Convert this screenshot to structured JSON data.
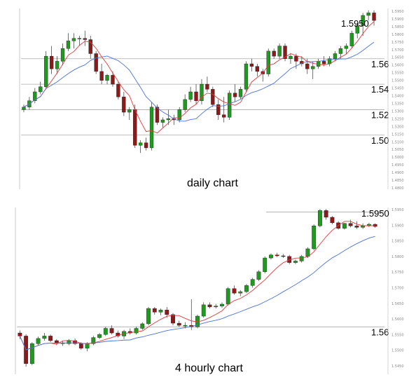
{
  "colors": {
    "bull": "#1f9a1f",
    "bear": "#8b1a1a",
    "ma_fast": "#e23b3b",
    "ma_slow": "#4a74d6",
    "ref_line": "#aaaaaa",
    "frame": "#bbbbbb"
  },
  "chart_data": [
    {
      "type": "candlestick",
      "title": "daily chart",
      "price_label": "1.5950",
      "ylim": [
        1.4575,
        1.5995
      ],
      "levels": [
        {
          "value": 1.56,
          "label": "1.56"
        },
        {
          "value": 1.54,
          "label": "1.54"
        },
        {
          "value": 1.52,
          "label": "1.52"
        },
        {
          "value": 1.5,
          "label": "1.50"
        }
      ],
      "ticks": [
        "1.5950",
        "1.5900",
        "1.5850",
        "1.5800",
        "1.5750",
        "1.5700",
        "1.5650",
        "1.5600",
        "1.5550",
        "1.5500",
        "1.5450",
        "1.5400",
        "1.5350",
        "1.5300",
        "1.5250",
        "1.5200",
        "1.5150",
        "1.5100",
        "1.5050",
        "1.5000",
        "1.4950",
        "1.4900",
        "1.4850",
        "1.4800"
      ],
      "ohlc": [
        [
          1.52,
          1.524,
          1.518,
          1.522
        ],
        [
          1.522,
          1.53,
          1.52,
          1.527
        ],
        [
          1.527,
          1.537,
          1.525,
          1.534
        ],
        [
          1.534,
          1.542,
          1.532,
          1.538
        ],
        [
          1.538,
          1.566,
          1.536,
          1.562
        ],
        [
          1.562,
          1.57,
          1.548,
          1.552
        ],
        [
          1.552,
          1.562,
          1.548,
          1.558
        ],
        [
          1.558,
          1.572,
          1.555,
          1.568
        ],
        [
          1.568,
          1.58,
          1.566,
          1.574
        ],
        [
          1.574,
          1.58,
          1.568,
          1.576
        ],
        [
          1.576,
          1.578,
          1.57,
          1.576
        ],
        [
          1.576,
          1.582,
          1.57,
          1.575
        ],
        [
          1.575,
          1.578,
          1.56,
          1.564
        ],
        [
          1.564,
          1.566,
          1.548,
          1.55
        ],
        [
          1.55,
          1.556,
          1.54,
          1.543
        ],
        [
          1.543,
          1.548,
          1.54,
          1.547
        ],
        [
          1.547,
          1.55,
          1.538,
          1.54
        ],
        [
          1.54,
          1.542,
          1.528,
          1.53
        ],
        [
          1.53,
          1.534,
          1.515,
          1.518
        ],
        [
          1.518,
          1.522,
          1.512,
          1.52
        ],
        [
          1.52,
          1.524,
          1.49,
          1.492
        ],
        [
          1.492,
          1.496,
          1.486,
          1.494
        ],
        [
          1.494,
          1.498,
          1.488,
          1.49
        ],
        [
          1.49,
          1.526,
          1.488,
          1.522
        ],
        [
          1.522,
          1.524,
          1.508,
          1.51
        ],
        [
          1.51,
          1.514,
          1.506,
          1.512
        ],
        [
          1.512,
          1.52,
          1.508,
          1.513
        ],
        [
          1.513,
          1.516,
          1.508,
          1.512
        ],
        [
          1.512,
          1.522,
          1.51,
          1.52
        ],
        [
          1.52,
          1.532,
          1.518,
          1.528
        ],
        [
          1.528,
          1.538,
          1.526,
          1.534
        ],
        [
          1.534,
          1.54,
          1.524,
          1.527
        ],
        [
          1.527,
          1.544,
          1.524,
          1.54
        ],
        [
          1.54,
          1.546,
          1.534,
          1.536
        ],
        [
          1.536,
          1.538,
          1.522,
          1.524
        ],
        [
          1.524,
          1.528,
          1.512,
          1.516
        ],
        [
          1.516,
          1.53,
          1.51,
          1.514
        ],
        [
          1.514,
          1.535,
          1.512,
          1.533
        ],
        [
          1.533,
          1.54,
          1.526,
          1.53
        ],
        [
          1.53,
          1.538,
          1.528,
          1.536
        ],
        [
          1.536,
          1.558,
          1.534,
          1.556
        ],
        [
          1.556,
          1.56,
          1.55,
          1.554
        ],
        [
          1.554,
          1.556,
          1.546,
          1.55
        ],
        [
          1.55,
          1.552,
          1.542,
          1.548
        ],
        [
          1.548,
          1.568,
          1.546,
          1.566
        ],
        [
          1.566,
          1.568,
          1.56,
          1.562
        ],
        [
          1.562,
          1.572,
          1.56,
          1.57
        ],
        [
          1.57,
          1.572,
          1.558,
          1.56
        ],
        [
          1.56,
          1.564,
          1.556,
          1.562
        ],
        [
          1.562,
          1.564,
          1.552,
          1.558
        ],
        [
          1.558,
          1.562,
          1.554,
          1.556
        ],
        [
          1.556,
          1.56,
          1.548,
          1.552
        ],
        [
          1.552,
          1.558,
          1.544,
          1.554
        ],
        [
          1.554,
          1.56,
          1.552,
          1.558
        ],
        [
          1.558,
          1.562,
          1.554,
          1.556
        ],
        [
          1.556,
          1.562,
          1.554,
          1.56
        ],
        [
          1.56,
          1.566,
          1.558,
          1.564
        ],
        [
          1.564,
          1.57,
          1.56,
          1.568
        ],
        [
          1.568,
          1.572,
          1.564,
          1.57
        ],
        [
          1.57,
          1.582,
          1.568,
          1.58
        ],
        [
          1.58,
          1.588,
          1.576,
          1.586
        ],
        [
          1.586,
          1.596,
          1.578,
          1.594
        ],
        [
          1.594,
          1.598,
          1.59,
          1.596
        ],
        [
          1.596,
          1.598,
          1.586,
          1.59
        ]
      ]
    },
    {
      "type": "candlestick",
      "title": "4 hourly chart",
      "price_label": "1.5950",
      "ylim": [
        1.5445,
        1.599
      ],
      "levels": [
        {
          "value": 1.56,
          "label": "1.56"
        },
        {
          "value": 1.5975,
          "label": ""
        }
      ],
      "ticks": [
        "1.5950",
        "1.5900",
        "1.5850",
        "1.5800",
        "1.5750",
        "1.5700",
        "1.5650",
        "1.5600",
        "1.5550",
        "1.5500",
        "1.5450"
      ],
      "ohlc": [
        [
          1.558,
          1.5588,
          1.556,
          1.557
        ],
        [
          1.557,
          1.5576,
          1.547,
          1.548
        ],
        [
          1.548,
          1.555,
          1.5475,
          1.5545
        ],
        [
          1.5545,
          1.5568,
          1.554,
          1.5562
        ],
        [
          1.5562,
          1.558,
          1.5555,
          1.557
        ],
        [
          1.557,
          1.5575,
          1.555,
          1.5555
        ],
        [
          1.5555,
          1.556,
          1.554,
          1.5548
        ],
        [
          1.5548,
          1.5555,
          1.5538,
          1.5545
        ],
        [
          1.5545,
          1.556,
          1.554,
          1.5555
        ],
        [
          1.5555,
          1.5562,
          1.554,
          1.5545
        ],
        [
          1.5545,
          1.555,
          1.5525,
          1.553
        ],
        [
          1.553,
          1.555,
          1.552,
          1.5545
        ],
        [
          1.5545,
          1.557,
          1.554,
          1.5565
        ],
        [
          1.5565,
          1.558,
          1.556,
          1.5575
        ],
        [
          1.5575,
          1.56,
          1.557,
          1.5595
        ],
        [
          1.5595,
          1.5605,
          1.5575,
          1.558
        ],
        [
          1.558,
          1.5588,
          1.5565,
          1.557
        ],
        [
          1.557,
          1.559,
          1.556,
          1.5585
        ],
        [
          1.5585,
          1.5595,
          1.5575,
          1.558
        ],
        [
          1.558,
          1.56,
          1.5575,
          1.5595
        ],
        [
          1.5595,
          1.5615,
          1.559,
          1.561
        ],
        [
          1.561,
          1.5665,
          1.5605,
          1.566
        ],
        [
          1.566,
          1.5665,
          1.564,
          1.5648
        ],
        [
          1.5648,
          1.566,
          1.5638,
          1.5655
        ],
        [
          1.5655,
          1.5665,
          1.563,
          1.564
        ],
        [
          1.564,
          1.5645,
          1.5605,
          1.5612
        ],
        [
          1.5612,
          1.562,
          1.56,
          1.5605
        ],
        [
          1.5605,
          1.5615,
          1.5595,
          1.5605
        ],
        [
          1.5605,
          1.569,
          1.559,
          1.56
        ],
        [
          1.56,
          1.564,
          1.5595,
          1.5635
        ],
        [
          1.5635,
          1.568,
          1.563,
          1.5672
        ],
        [
          1.5672,
          1.568,
          1.566,
          1.5665
        ],
        [
          1.5665,
          1.5675,
          1.566,
          1.5668
        ],
        [
          1.5668,
          1.568,
          1.5662,
          1.5674
        ],
        [
          1.5674,
          1.573,
          1.567,
          1.5725
        ],
        [
          1.5725,
          1.5735,
          1.5705,
          1.571
        ],
        [
          1.571,
          1.572,
          1.57,
          1.5715
        ],
        [
          1.5715,
          1.574,
          1.571,
          1.5735
        ],
        [
          1.5735,
          1.576,
          1.5728,
          1.5755
        ],
        [
          1.5755,
          1.5785,
          1.575,
          1.578
        ],
        [
          1.578,
          1.583,
          1.5775,
          1.5825
        ],
        [
          1.5825,
          1.584,
          1.582,
          1.5835
        ],
        [
          1.5835,
          1.5842,
          1.5828,
          1.5832
        ],
        [
          1.5832,
          1.5838,
          1.5825,
          1.583
        ],
        [
          1.583,
          1.5835,
          1.5805,
          1.581
        ],
        [
          1.581,
          1.582,
          1.5805,
          1.5815
        ],
        [
          1.5815,
          1.5835,
          1.581,
          1.583
        ],
        [
          1.583,
          1.586,
          1.5825,
          1.5855
        ],
        [
          1.5855,
          1.5935,
          1.585,
          1.593
        ],
        [
          1.593,
          1.5985,
          1.5925,
          1.598
        ],
        [
          1.598,
          1.5985,
          1.595,
          1.5958
        ],
        [
          1.5958,
          1.5962,
          1.5935,
          1.594
        ],
        [
          1.594,
          1.5945,
          1.5918,
          1.5922
        ],
        [
          1.5922,
          1.594,
          1.5918,
          1.5938
        ],
        [
          1.5938,
          1.595,
          1.5925,
          1.593
        ],
        [
          1.593,
          1.5945,
          1.592,
          1.5925
        ],
        [
          1.5925,
          1.5938,
          1.592,
          1.593
        ],
        [
          1.593,
          1.594,
          1.5926,
          1.5935
        ],
        [
          1.5935,
          1.5938,
          1.5924,
          1.5928
        ]
      ]
    }
  ]
}
